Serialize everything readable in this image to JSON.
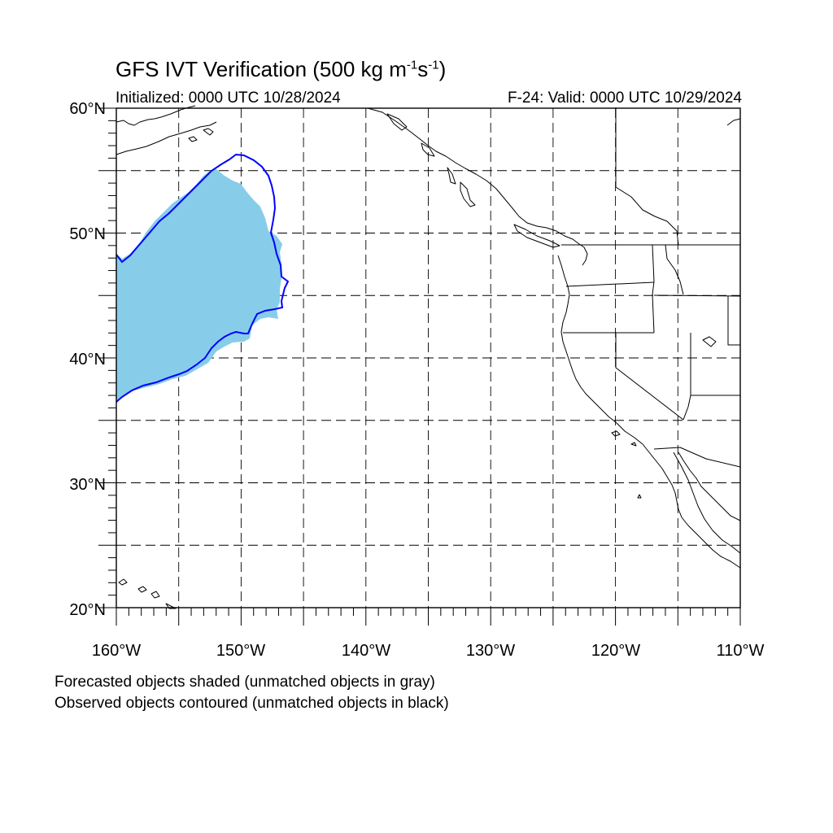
{
  "title": {
    "main": "GFS IVT Verification (500 kg m",
    "exp1": "-1",
    "mid": "s",
    "exp2": "-1",
    "end": ")"
  },
  "subtitle": {
    "initialized": "Initialized: 0000 UTC 10/28/2024",
    "valid": "F-24: Valid: 0000 UTC 10/29/2024"
  },
  "map": {
    "lon_range": [
      -160,
      -110
    ],
    "lat_range": [
      20,
      60
    ],
    "grid": true,
    "lat_labels": [
      "60°N",
      "50°N",
      "40°N",
      "30°N",
      "20°N"
    ],
    "lon_labels": [
      "160°W",
      "150°W",
      "140°W",
      "130°W",
      "120°W",
      "110°W"
    ],
    "forecast_fill_color": "#87cdea",
    "observed_contour_color": "#0000ff",
    "coast_color": "#000000"
  },
  "notes": {
    "line1": "Forecasted objects shaded (unmatched objects in gray)",
    "line2": "Observed objects contoured (unmatched objects in black)"
  }
}
